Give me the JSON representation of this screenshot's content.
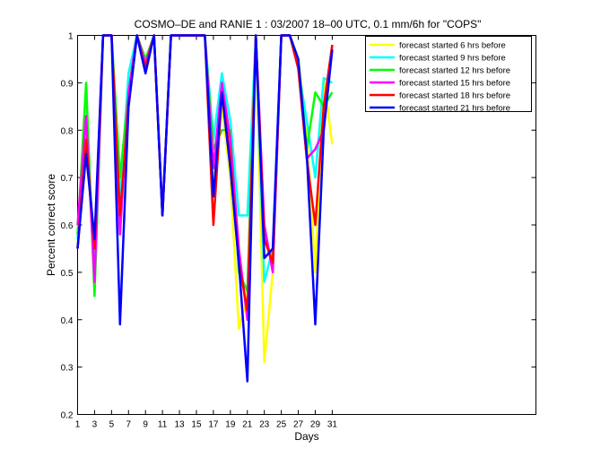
{
  "chart_data": {
    "type": "line",
    "title": "COSMO–DE and RANIE 1 : 03/2007 18–00 UTC, 0.1 mm/6h for \"COPS\"",
    "xlabel": "Days",
    "ylabel": "Percent correct score",
    "xlim": [
      1,
      55
    ],
    "ylim": [
      0.2,
      1.0
    ],
    "xticks": [
      1,
      3,
      5,
      7,
      9,
      11,
      13,
      15,
      17,
      19,
      21,
      23,
      25,
      27,
      29,
      31
    ],
    "yticks": [
      0.2,
      0.3,
      0.4,
      0.5,
      0.6,
      0.7,
      0.8,
      0.9,
      1.0
    ],
    "ytick_labels": [
      "0.2",
      "0.3",
      "0.4",
      "0.5",
      "0.6",
      "0.7",
      "0.8",
      "0.9",
      "1"
    ],
    "grid": false,
    "legend_position": "top-right",
    "x": [
      1,
      2,
      3,
      4,
      5,
      6,
      7,
      8,
      9,
      10,
      11,
      12,
      13,
      14,
      15,
      16,
      17,
      18,
      19,
      20,
      21,
      22,
      23,
      24,
      25,
      26,
      27,
      28,
      29,
      30,
      31
    ],
    "series": [
      {
        "name": "forecast started 6 hrs before",
        "color": "#ffff00",
        "values": [
          0.55,
          0.8,
          0.5,
          1.0,
          1.0,
          0.68,
          0.9,
          1.0,
          0.93,
          1.0,
          0.62,
          1.0,
          1.0,
          1.0,
          1.0,
          1.0,
          0.7,
          0.85,
          0.7,
          0.38,
          0.45,
          1.0,
          0.31,
          0.5,
          1.0,
          1.0,
          0.95,
          0.8,
          0.5,
          0.91,
          0.77
        ]
      },
      {
        "name": "forecast started 9 hrs before",
        "color": "#00ffff",
        "values": [
          0.57,
          0.82,
          0.53,
          1.0,
          1.0,
          0.65,
          0.92,
          1.0,
          0.94,
          1.0,
          0.62,
          1.0,
          1.0,
          1.0,
          1.0,
          1.0,
          0.78,
          0.92,
          0.82,
          0.62,
          0.62,
          1.0,
          0.48,
          0.55,
          1.0,
          1.0,
          0.93,
          0.82,
          0.7,
          0.91,
          0.9
        ]
      },
      {
        "name": "forecast started 12 hrs before",
        "color": "#00ff00",
        "values": [
          0.58,
          0.9,
          0.45,
          1.0,
          1.0,
          0.7,
          0.88,
          1.0,
          0.95,
          1.0,
          0.62,
          1.0,
          1.0,
          1.0,
          1.0,
          1.0,
          0.76,
          0.8,
          0.8,
          0.5,
          0.46,
          1.0,
          0.58,
          0.52,
          1.0,
          1.0,
          0.95,
          0.76,
          0.88,
          0.85,
          0.88
        ]
      },
      {
        "name": "forecast started 15 hrs before",
        "color": "#ff00ff",
        "values": [
          0.6,
          0.83,
          0.48,
          1.0,
          1.0,
          0.58,
          0.88,
          1.0,
          0.94,
          1.0,
          0.62,
          1.0,
          1.0,
          1.0,
          1.0,
          1.0,
          0.72,
          0.9,
          0.78,
          0.55,
          0.4,
          1.0,
          0.6,
          0.5,
          1.0,
          1.0,
          0.94,
          0.74,
          0.76,
          0.8,
          0.98
        ]
      },
      {
        "name": "forecast started 18 hrs before",
        "color": "#ff0000",
        "values": [
          0.55,
          0.78,
          0.55,
          1.0,
          1.0,
          0.62,
          0.85,
          1.0,
          0.93,
          1.0,
          0.62,
          1.0,
          1.0,
          1.0,
          1.0,
          1.0,
          0.6,
          0.88,
          0.74,
          0.52,
          0.42,
          1.0,
          0.57,
          0.52,
          1.0,
          1.0,
          0.93,
          0.74,
          0.6,
          0.85,
          0.98
        ]
      },
      {
        "name": "forecast started 21 hrs before",
        "color": "#0000ff",
        "values": [
          0.55,
          0.75,
          0.57,
          1.0,
          1.0,
          0.39,
          0.85,
          1.0,
          0.92,
          1.0,
          0.62,
          1.0,
          1.0,
          1.0,
          1.0,
          1.0,
          0.66,
          0.88,
          0.72,
          0.52,
          0.27,
          1.0,
          0.53,
          0.55,
          1.0,
          1.0,
          0.95,
          0.75,
          0.39,
          0.8,
          0.97
        ]
      }
    ]
  }
}
